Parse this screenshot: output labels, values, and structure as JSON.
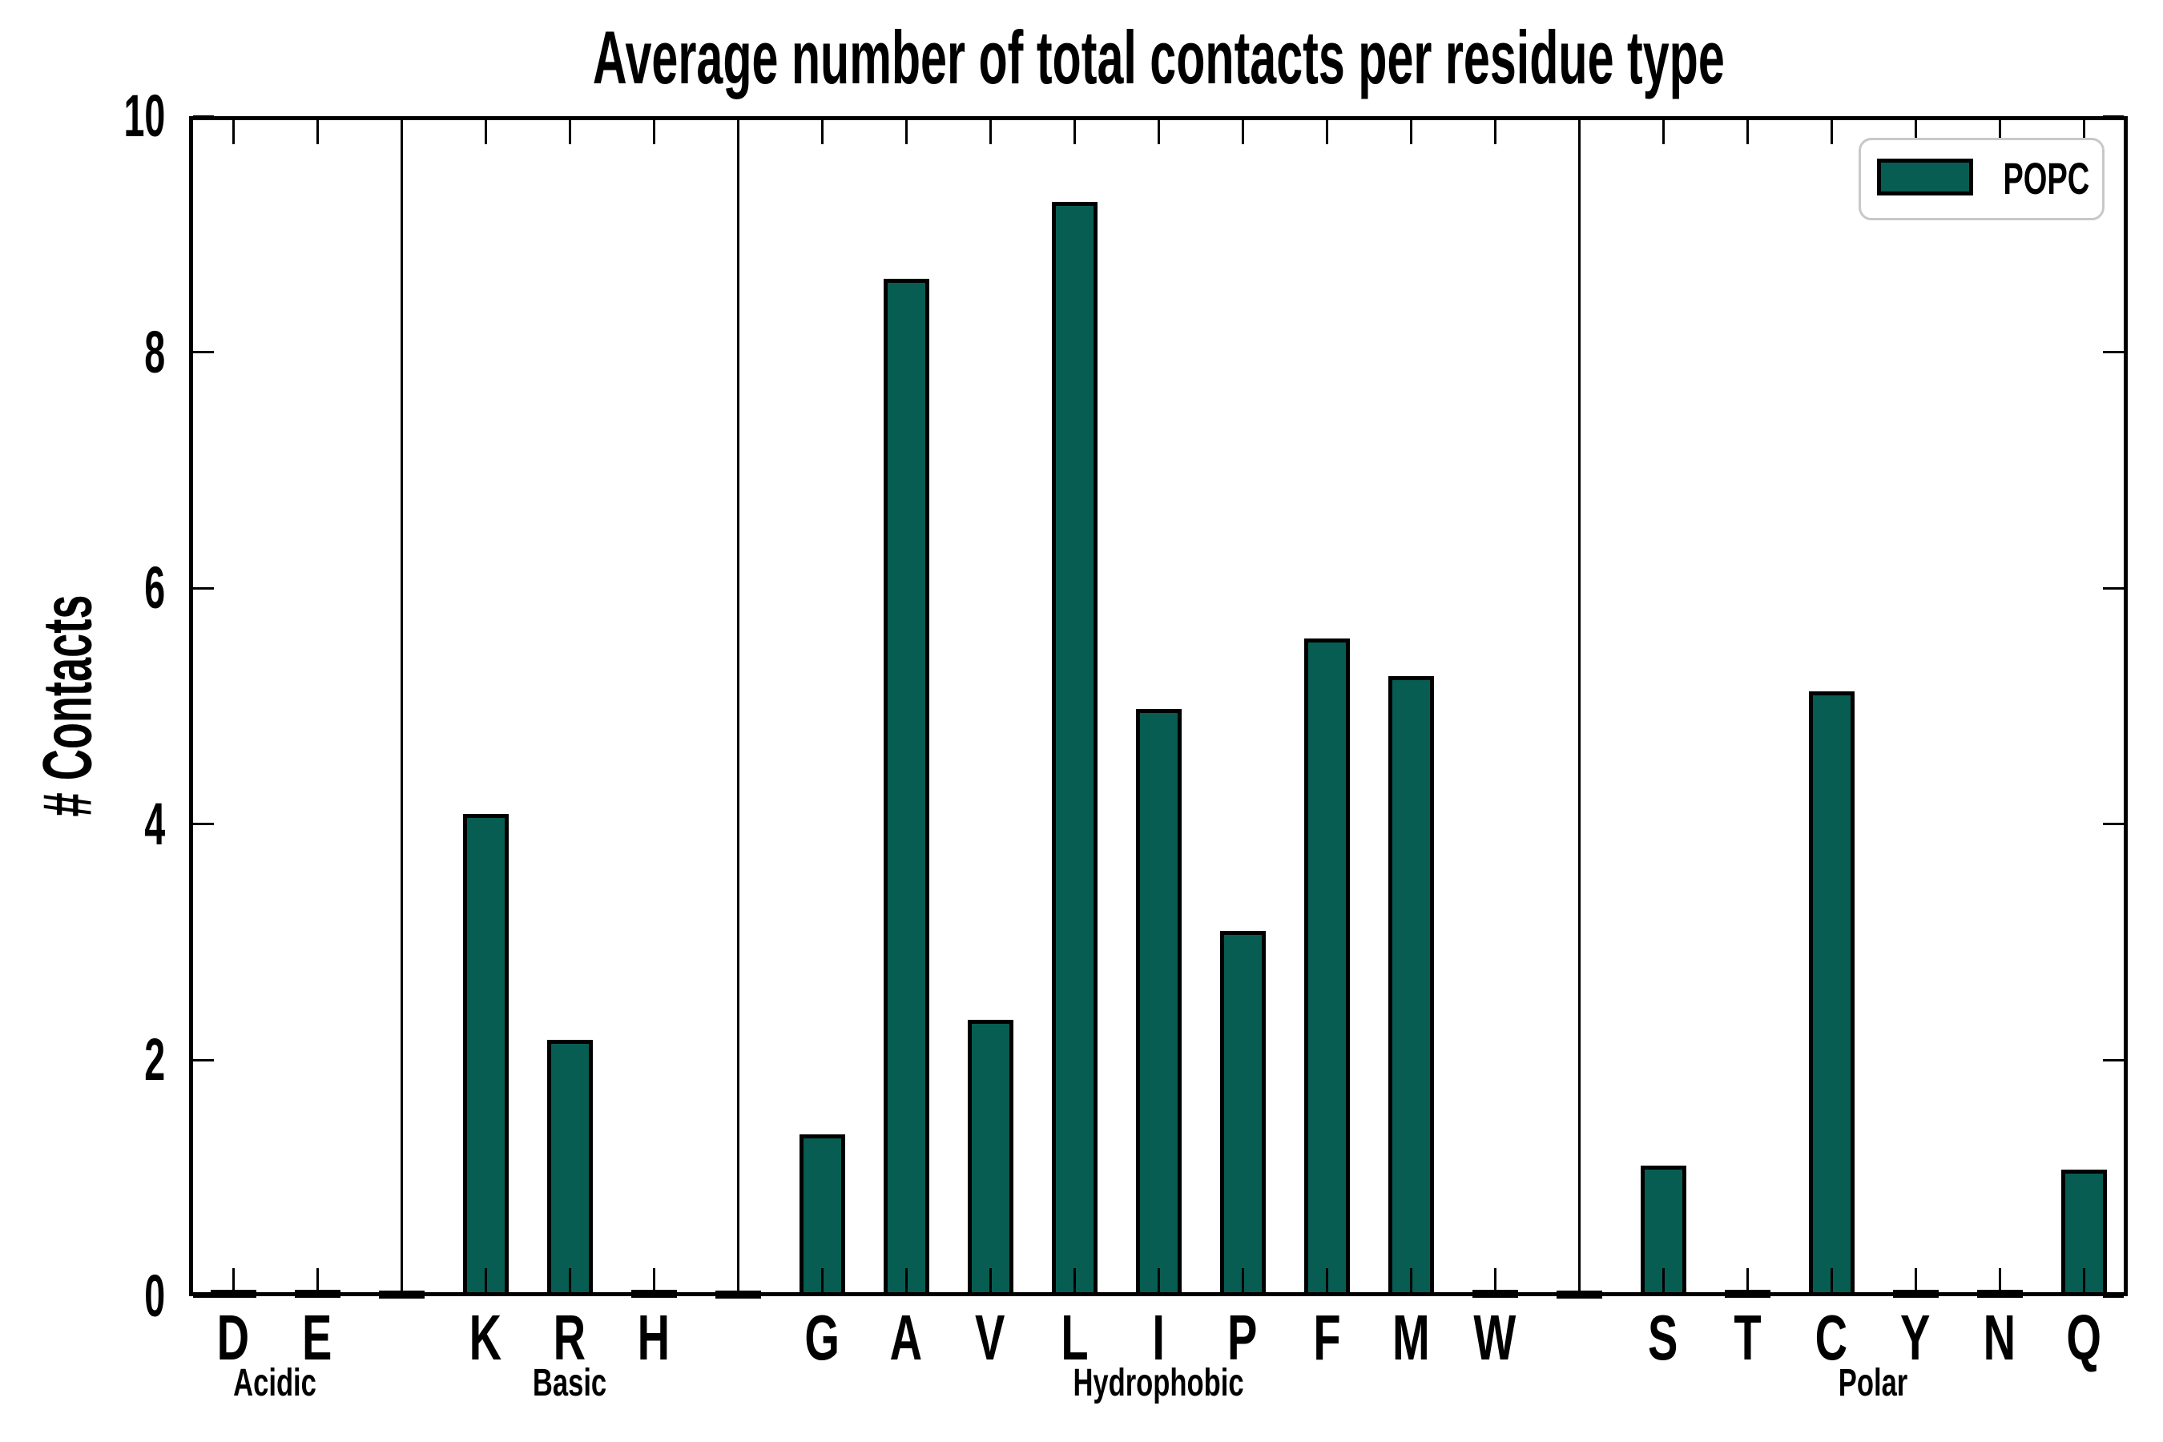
{
  "chart_data": {
    "type": "bar",
    "title": "Average number of total contacts per residue type",
    "ylabel": "# Contacts",
    "xlabel": "",
    "ylim": [
      0,
      10
    ],
    "yticks": [
      0,
      2,
      4,
      6,
      8,
      10
    ],
    "grid": false,
    "groups": [
      {
        "label": "Acidic",
        "categories": [
          "D",
          "E"
        ],
        "values": [
          0.02,
          0.02
        ]
      },
      {
        "label": "Basic",
        "categories": [
          "K",
          "R",
          "H"
        ],
        "values": [
          4.07,
          2.16,
          0.02
        ]
      },
      {
        "label": "Hydrophobic",
        "categories": [
          "G",
          "A",
          "V",
          "L",
          "I",
          "P",
          "F",
          "M",
          "W"
        ],
        "values": [
          1.36,
          8.61,
          2.33,
          9.26,
          4.96,
          3.08,
          5.56,
          5.24,
          0.02
        ]
      },
      {
        "label": "Polar",
        "categories": [
          "S",
          "T",
          "C",
          "Y",
          "N",
          "Q"
        ],
        "values": [
          1.09,
          0.02,
          5.11,
          0.02,
          0.02,
          1.06
        ]
      }
    ],
    "legend": {
      "label": "POPC",
      "position": "upper right"
    },
    "colors": {
      "bar_fill": "#075D52",
      "bar_edge": "#000000",
      "axis": "#000000",
      "legend_border": "#c8c8c8",
      "background": "#ffffff"
    }
  }
}
